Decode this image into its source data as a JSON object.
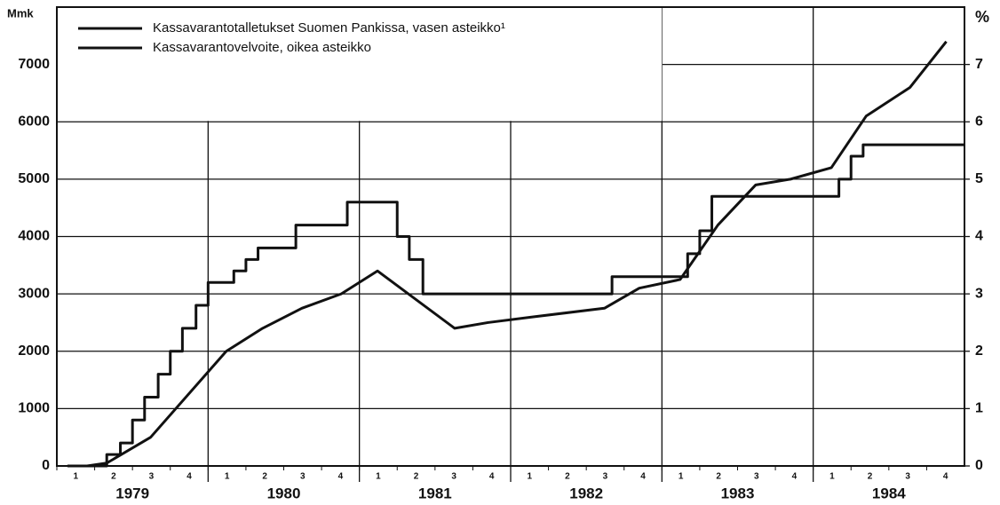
{
  "chart_data": {
    "type": "line",
    "ylabel": "Mmk",
    "y2label": "%",
    "xlim": [
      1979,
      1985
    ],
    "ylim": [
      0,
      8000
    ],
    "yticks": [
      0,
      1000,
      2000,
      3000,
      4000,
      5000,
      6000,
      7000
    ],
    "y2lim": [
      0,
      8
    ],
    "y2ticks": [
      0,
      1,
      2,
      3,
      4,
      5,
      6,
      7
    ],
    "grid": true,
    "legend": "upper left",
    "year_ticks": [
      {
        "value": 1979,
        "label": "1979"
      },
      {
        "value": 1980,
        "label": "1980"
      },
      {
        "value": 1981,
        "label": "1981"
      },
      {
        "value": 1982,
        "label": "1982"
      },
      {
        "value": 1983,
        "label": "1983"
      },
      {
        "value": 1984,
        "label": "1984"
      }
    ],
    "xticks": [
      {
        "value": 1979,
        "label": "1"
      },
      {
        "value": 1979.25,
        "label": "2"
      },
      {
        "value": 1979.5,
        "label": "3"
      },
      {
        "value": 1979.75,
        "label": "4"
      },
      {
        "value": 1980,
        "label": "1"
      },
      {
        "value": 1980.25,
        "label": "2"
      },
      {
        "value": 1980.5,
        "label": "3"
      },
      {
        "value": 1980.75,
        "label": "4"
      },
      {
        "value": 1981,
        "label": "1"
      },
      {
        "value": 1981.25,
        "label": "2"
      },
      {
        "value": 1981.5,
        "label": "3"
      },
      {
        "value": 1981.75,
        "label": "4"
      },
      {
        "value": 1982,
        "label": "1"
      },
      {
        "value": 1982.25,
        "label": "2"
      },
      {
        "value": 1982.5,
        "label": "3"
      },
      {
        "value": 1982.75,
        "label": "4"
      },
      {
        "value": 1983,
        "label": "1"
      },
      {
        "value": 1983.25,
        "label": "2"
      },
      {
        "value": 1983.5,
        "label": "3"
      },
      {
        "value": 1983.75,
        "label": "4"
      },
      {
        "value": 1984,
        "label": "1"
      },
      {
        "value": 1984.25,
        "label": "2"
      },
      {
        "value": 1984.5,
        "label": "3"
      },
      {
        "value": 1984.75,
        "label": "4"
      }
    ],
    "series": [
      {
        "name": "Kassavarantotalletukset Suomen Pankissa, vasen asteikko¹",
        "color": "#111111",
        "step": true,
        "x": [
          1979.07,
          1979.33,
          1979.42,
          1979.5,
          1979.58,
          1979.67,
          1979.75,
          1979.83,
          1979.92,
          1980.0,
          1980.17,
          1980.25,
          1980.33,
          1980.58,
          1980.92,
          1981.25,
          1981.33,
          1981.42,
          1982.67,
          1983.17,
          1983.25,
          1983.33,
          1984.17,
          1984.25,
          1984.33,
          1985.0
        ],
        "values": [
          0,
          200,
          400,
          800,
          1200,
          1600,
          2000,
          2400,
          2800,
          3200,
          3400,
          3600,
          3800,
          4200,
          4600,
          4000,
          3600,
          3000,
          3300,
          3700,
          4100,
          4700,
          5000,
          5400,
          5600,
          5600
        ]
      },
      {
        "name": "Kassavarantovelvoite, oikea asteikko",
        "color": "#111111",
        "axis": "y2",
        "x": [
          1979.2,
          1979.33,
          1979.62,
          1980.12,
          1980.36,
          1980.62,
          1980.88,
          1981.12,
          1981.63,
          1981.85,
          1982.15,
          1982.62,
          1982.85,
          1983.12,
          1983.37,
          1983.62,
          1983.85,
          1984.12,
          1984.35,
          1984.64,
          1984.88
        ],
        "values": [
          0,
          0.05,
          0.5,
          2.0,
          2.4,
          2.75,
          3.0,
          3.4,
          2.4,
          2.5,
          2.6,
          2.75,
          3.1,
          3.25,
          4.2,
          4.9,
          5.0,
          5.2,
          6.1,
          6.6,
          7.4
        ]
      }
    ]
  }
}
